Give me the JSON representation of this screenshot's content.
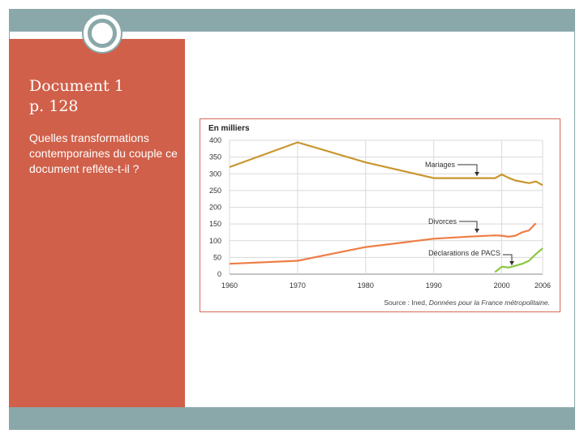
{
  "slide": {
    "title_line1": "Document 1",
    "title_line2": "p. 128",
    "question": "Quelles transformations contemporaines du couple ce document reflète-t-il ?",
    "colors": {
      "panel": "#d0604a",
      "bars": "#8aa8a9"
    },
    "logo_icon": "ring-icon"
  },
  "chart_data": {
    "type": "line",
    "unit_label": "En milliers",
    "source_prefix": "Source : Ined, ",
    "source_italic": "Données pour la France métropolitaine.",
    "ylim": [
      0,
      400
    ],
    "xlim": [
      1960,
      2006
    ],
    "y_ticks": [
      0,
      50,
      100,
      150,
      200,
      250,
      300,
      350,
      400
    ],
    "x_ticks": [
      1960,
      1970,
      1980,
      1990,
      2000,
      2006
    ],
    "grid": true,
    "series": [
      {
        "name": "Mariages",
        "color": "#c9962e",
        "points": [
          [
            1960,
            320
          ],
          [
            1970,
            394
          ],
          [
            1980,
            334
          ],
          [
            1990,
            287
          ],
          [
            1995,
            287
          ],
          [
            1999,
            287
          ],
          [
            2000,
            298
          ],
          [
            2001,
            288
          ],
          [
            2002,
            280
          ],
          [
            2004,
            272
          ],
          [
            2005,
            277
          ],
          [
            2006,
            266
          ]
        ]
      },
      {
        "name": "Divorces",
        "color": "#ee7d45",
        "points": [
          [
            1960,
            31
          ],
          [
            1970,
            40
          ],
          [
            1980,
            81
          ],
          [
            1990,
            106
          ],
          [
            1995,
            112
          ],
          [
            1999,
            116
          ],
          [
            2000,
            115
          ],
          [
            2001,
            112
          ],
          [
            2002,
            115
          ],
          [
            2003,
            125
          ],
          [
            2004,
            131
          ],
          [
            2005,
            152
          ]
        ]
      },
      {
        "name": "Déclarations de PACS",
        "color": "#8cc63f",
        "points": [
          [
            1999,
            6
          ],
          [
            2000,
            22
          ],
          [
            2001,
            20
          ],
          [
            2002,
            25
          ],
          [
            2003,
            31
          ],
          [
            2004,
            40
          ],
          [
            2005,
            60
          ],
          [
            2006,
            77
          ]
        ]
      }
    ]
  }
}
